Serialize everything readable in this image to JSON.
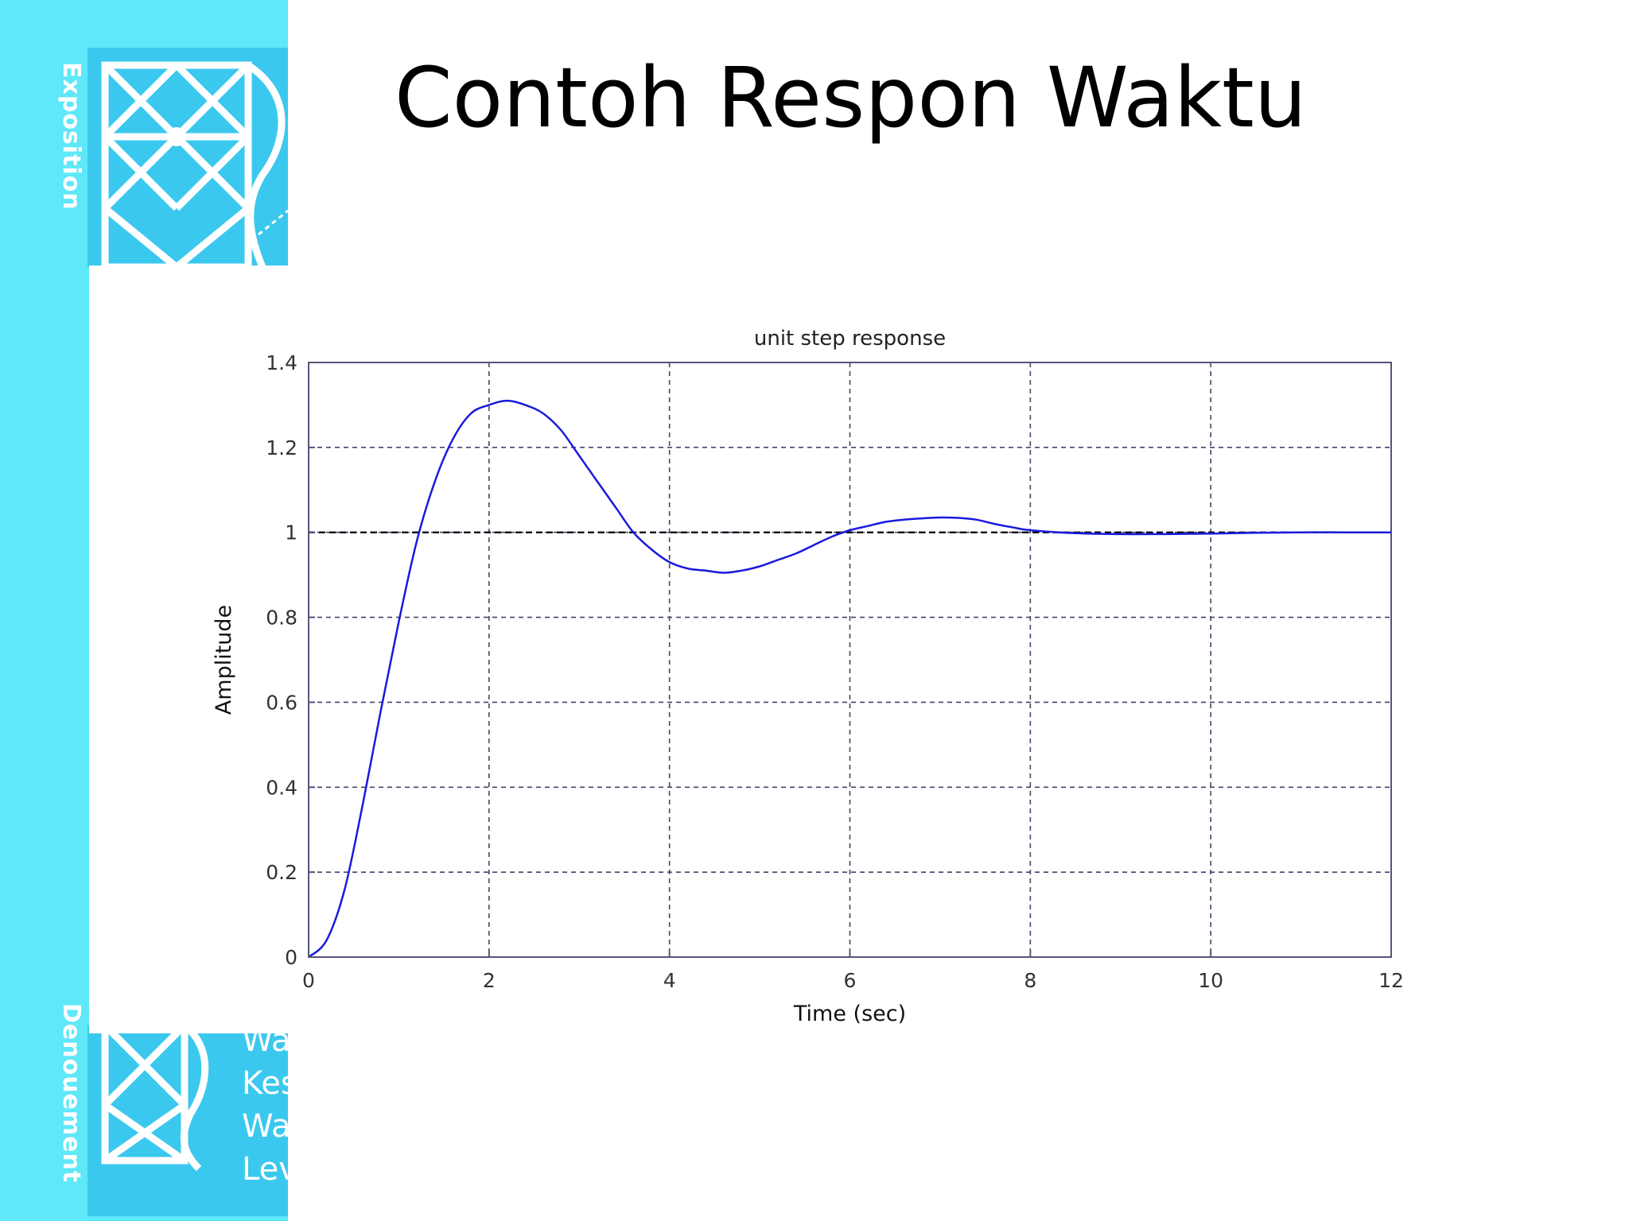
{
  "slide": {
    "title": "Contoh Respon Waktu"
  },
  "band": {
    "top_vertical_text": "Exposition",
    "bottom_vertical_text": "Denouement",
    "fragments": [
      "Wa",
      "Kes",
      "Wa",
      "Lev"
    ],
    "colors": {
      "band": "#5ee8f8",
      "art": "#3bc8ee"
    }
  },
  "chart_data": {
    "type": "line",
    "title": "unit step response",
    "xlabel": "Time (sec)",
    "ylabel": "Amplitude",
    "xlim": [
      0,
      12
    ],
    "ylim": [
      0,
      1.4
    ],
    "xticks": [
      0,
      2,
      4,
      6,
      8,
      10,
      12
    ],
    "xtick_labels": [
      "0",
      "2",
      "4",
      "6",
      "8",
      "10",
      "12"
    ],
    "yticks": [
      0,
      0.2,
      0.4,
      0.6,
      0.8,
      1,
      1.2,
      1.4
    ],
    "ytick_labels": [
      "0",
      "0.2",
      "0.4",
      "0.6",
      "0.8",
      "1",
      "1.2",
      "1.4"
    ],
    "grid": true,
    "reference_line": {
      "y": 1,
      "style": "dashed",
      "color": "#000000"
    },
    "series": [
      {
        "color": "#1a1adc",
        "x": [
          0,
          0.2,
          0.4,
          0.6,
          0.8,
          1.0,
          1.2,
          1.4,
          1.6,
          1.8,
          2.0,
          2.2,
          2.4,
          2.6,
          2.8,
          3.0,
          3.2,
          3.4,
          3.6,
          3.8,
          4.0,
          4.2,
          4.4,
          4.6,
          4.8,
          5.0,
          5.2,
          5.4,
          5.6,
          5.8,
          6.0,
          6.2,
          6.4,
          6.6,
          6.8,
          7.0,
          7.2,
          7.4,
          7.6,
          7.8,
          8.0,
          8.5,
          9.0,
          9.5,
          10.0,
          10.5,
          11.0,
          11.5,
          12.0
        ],
        "y": [
          0,
          0.04,
          0.16,
          0.36,
          0.58,
          0.79,
          0.98,
          1.12,
          1.22,
          1.28,
          1.3,
          1.31,
          1.3,
          1.28,
          1.24,
          1.18,
          1.12,
          1.06,
          1.0,
          0.96,
          0.93,
          0.915,
          0.91,
          0.905,
          0.91,
          0.92,
          0.935,
          0.95,
          0.97,
          0.99,
          1.005,
          1.015,
          1.025,
          1.03,
          1.033,
          1.035,
          1.034,
          1.03,
          1.02,
          1.012,
          1.005,
          0.998,
          0.996,
          0.996,
          0.997,
          0.999,
          1.0,
          1.0,
          1.0
        ]
      }
    ]
  }
}
